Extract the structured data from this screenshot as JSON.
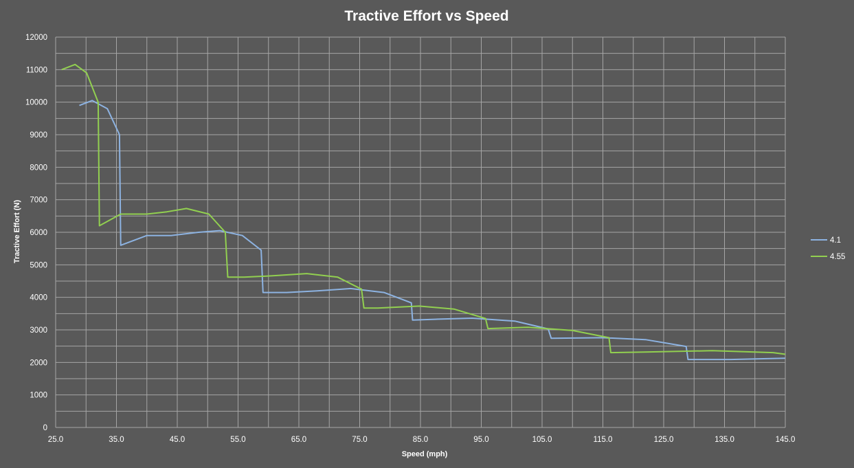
{
  "chart_data": {
    "type": "line",
    "title": "Tractive Effort vs Speed",
    "xlabel": "Speed (mph)",
    "ylabel": "Tractive Effort (N)",
    "xlim": [
      25,
      145
    ],
    "ylim": [
      0,
      12000
    ],
    "x_ticks": [
      "25.0",
      "35.0",
      "45.0",
      "55.0",
      "65.0",
      "75.0",
      "85.0",
      "95.0",
      "105.0",
      "115.0",
      "125.0",
      "135.0",
      "145.0"
    ],
    "y_ticks": [
      "0",
      "1000",
      "2000",
      "3000",
      "4000",
      "5000",
      "6000",
      "7000",
      "8000",
      "9000",
      "10000",
      "11000",
      "12000"
    ],
    "grid": true,
    "legend": "right",
    "series": [
      {
        "name": "4.1",
        "color": "#8db3e2",
        "points": [
          [
            28.9,
            9900
          ],
          [
            31.0,
            10050
          ],
          [
            33.5,
            9800
          ],
          [
            35.5,
            9000
          ],
          [
            35.7,
            5600
          ],
          [
            40.0,
            5900
          ],
          [
            44.0,
            5900
          ],
          [
            48.5,
            6000
          ],
          [
            52.0,
            6050
          ],
          [
            55.7,
            5900
          ],
          [
            58.8,
            5450
          ],
          [
            59.1,
            4150
          ],
          [
            63.0,
            4150
          ],
          [
            68.0,
            4200
          ],
          [
            73.5,
            4270
          ],
          [
            79.0,
            4150
          ],
          [
            83.5,
            3830
          ],
          [
            83.7,
            3300
          ],
          [
            88.0,
            3330
          ],
          [
            93.5,
            3360
          ],
          [
            100.5,
            3270
          ],
          [
            106.0,
            3030
          ],
          [
            106.5,
            2740
          ],
          [
            115.0,
            2760
          ],
          [
            122.0,
            2700
          ],
          [
            128.7,
            2490
          ],
          [
            129.0,
            2090
          ],
          [
            136.0,
            2090
          ],
          [
            145.0,
            2130
          ]
        ]
      },
      {
        "name": "4.55",
        "color": "#92d050",
        "points": [
          [
            26.0,
            11000
          ],
          [
            28.2,
            11160
          ],
          [
            30.1,
            10900
          ],
          [
            32.0,
            10000
          ],
          [
            32.2,
            6200
          ],
          [
            35.7,
            6560
          ],
          [
            40.0,
            6560
          ],
          [
            43.3,
            6630
          ],
          [
            46.5,
            6730
          ],
          [
            50.2,
            6560
          ],
          [
            52.9,
            6000
          ],
          [
            53.3,
            4620
          ],
          [
            56.0,
            4620
          ],
          [
            60.5,
            4660
          ],
          [
            66.3,
            4730
          ],
          [
            71.4,
            4620
          ],
          [
            75.3,
            4250
          ],
          [
            75.7,
            3670
          ],
          [
            78.0,
            3670
          ],
          [
            84.8,
            3730
          ],
          [
            90.5,
            3640
          ],
          [
            95.7,
            3350
          ],
          [
            96.1,
            3040
          ],
          [
            102.7,
            3080
          ],
          [
            110.0,
            2980
          ],
          [
            116.0,
            2760
          ],
          [
            116.3,
            2300
          ],
          [
            122.0,
            2320
          ],
          [
            133.0,
            2360
          ],
          [
            143.0,
            2300
          ],
          [
            145.0,
            2250
          ]
        ]
      }
    ]
  }
}
